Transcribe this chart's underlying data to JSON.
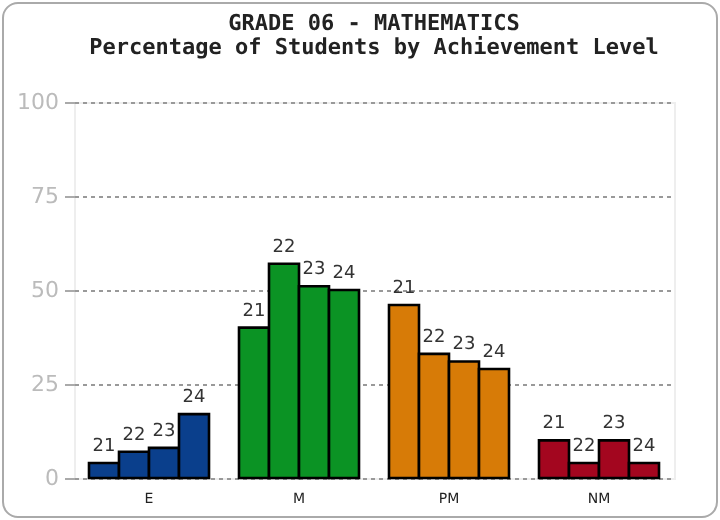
{
  "chart_data": {
    "type": "bar",
    "title": "GRADE 06 - MATHEMATICS",
    "subtitle": "Percentage of Students by Achievement Level",
    "categories": [
      "E",
      "M",
      "PM",
      "NM"
    ],
    "series": [
      {
        "name": "21",
        "colors": [
          "#0a3f8c",
          "#0b9324",
          "#d77b07",
          "#a3061f"
        ],
        "values": [
          4,
          40,
          46,
          10
        ]
      },
      {
        "name": "22",
        "colors": [
          "#0a3f8c",
          "#0b9324",
          "#d77b07",
          "#a3061f"
        ],
        "values": [
          7,
          57,
          33,
          4
        ]
      },
      {
        "name": "23",
        "colors": [
          "#0a3f8c",
          "#0b9324",
          "#d77b07",
          "#a3061f"
        ],
        "values": [
          8,
          51,
          31,
          10
        ]
      },
      {
        "name": "24",
        "colors": [
          "#0a3f8c",
          "#0b9324",
          "#d77b07",
          "#a3061f"
        ],
        "values": [
          17,
          50,
          29,
          4
        ]
      }
    ],
    "ylim": [
      0,
      100
    ],
    "yticks": [
      0,
      25,
      50,
      75,
      100
    ],
    "grid": "y"
  }
}
